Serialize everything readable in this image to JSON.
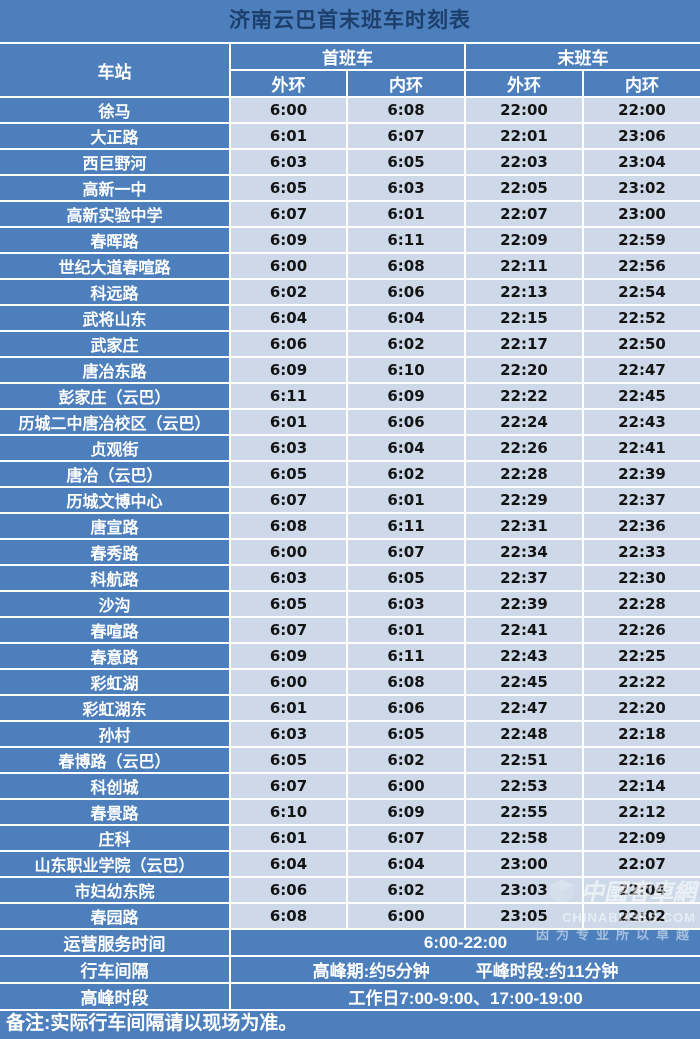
{
  "title": "济南云巴首末班车时刻表",
  "colors": {
    "background": "#4d7fbd",
    "grid_line": "#ffffff",
    "time_cell_bg": "#cdd9e9",
    "title_text": "#1d3f6b",
    "time_text": "#141414",
    "header_text": "#ffffff"
  },
  "table": {
    "col_station": "车站",
    "group_first": "首班车",
    "group_last": "末班车",
    "sub_outer_1": "外环",
    "sub_inner_1": "内环",
    "sub_outer_2": "外环",
    "sub_inner_2": "内环"
  },
  "stations": [
    [
      "徐马",
      "6:00",
      "6:08",
      "22:00",
      "22:00"
    ],
    [
      "大正路",
      "6:01",
      "6:07",
      "22:01",
      "23:06"
    ],
    [
      "西巨野河",
      "6:03",
      "6:05",
      "22:03",
      "23:04"
    ],
    [
      "高新一中",
      "6:05",
      "6:03",
      "22:05",
      "23:02"
    ],
    [
      "高新实验中学",
      "6:07",
      "6:01",
      "22:07",
      "23:00"
    ],
    [
      "春晖路",
      "6:09",
      "6:11",
      "22:09",
      "22:59"
    ],
    [
      "世纪大道春喧路",
      "6:00",
      "6:08",
      "22:11",
      "22:56"
    ],
    [
      "科远路",
      "6:02",
      "6:06",
      "22:13",
      "22:54"
    ],
    [
      "武将山东",
      "6:04",
      "6:04",
      "22:15",
      "22:52"
    ],
    [
      "武家庄",
      "6:06",
      "6:02",
      "22:17",
      "22:50"
    ],
    [
      "唐冶东路",
      "6:09",
      "6:10",
      "22:20",
      "22:47"
    ],
    [
      "彭家庄（云巴）",
      "6:11",
      "6:09",
      "22:22",
      "22:45"
    ],
    [
      "历城二中唐冶校区（云巴）",
      "6:01",
      "6:06",
      "22:24",
      "22:43"
    ],
    [
      "贞观街",
      "6:03",
      "6:04",
      "22:26",
      "22:41"
    ],
    [
      "唐冶（云巴）",
      "6:05",
      "6:02",
      "22:28",
      "22:39"
    ],
    [
      "历城文博中心",
      "6:07",
      "6:01",
      "22:29",
      "22:37"
    ],
    [
      "唐宣路",
      "6:08",
      "6:11",
      "22:31",
      "22:36"
    ],
    [
      "春秀路",
      "6:00",
      "6:07",
      "22:34",
      "22:33"
    ],
    [
      "科航路",
      "6:03",
      "6:05",
      "22:37",
      "22:30"
    ],
    [
      "沙沟",
      "6:05",
      "6:03",
      "22:39",
      "22:28"
    ],
    [
      "春喧路",
      "6:07",
      "6:01",
      "22:41",
      "22:26"
    ],
    [
      "春意路",
      "6:09",
      "6:11",
      "22:43",
      "22:25"
    ],
    [
      "彩虹湖",
      "6:00",
      "6:08",
      "22:45",
      "22:22"
    ],
    [
      "彩虹湖东",
      "6:01",
      "6:06",
      "22:47",
      "22:20"
    ],
    [
      "孙村",
      "6:03",
      "6:05",
      "22:48",
      "22:18"
    ],
    [
      "春博路（云巴）",
      "6:05",
      "6:02",
      "22:51",
      "22:16"
    ],
    [
      "科创城",
      "6:07",
      "6:00",
      "22:53",
      "22:14"
    ],
    [
      "春景路",
      "6:10",
      "6:09",
      "22:55",
      "22:12"
    ],
    [
      "庄科",
      "6:01",
      "6:07",
      "22:58",
      "22:09"
    ],
    [
      "山东职业学院（云巴）",
      "6:04",
      "6:04",
      "23:00",
      "22:07"
    ],
    [
      "市妇幼东院",
      "6:06",
      "6:02",
      "23:03",
      "22:04"
    ],
    [
      "春园路",
      "6:08",
      "6:00",
      "23:05",
      "22:02"
    ]
  ],
  "service_time": {
    "label": "运营服务时间",
    "value": "6:00-22:00"
  },
  "interval": {
    "label": "行车间隔",
    "peak": "高峰期:约5分钟",
    "offpeak": "平峰时段:约11分钟"
  },
  "peak_period": {
    "label": "高峰时段",
    "value": "工作日7:00-9:00、17:00-19:00"
  },
  "footnote": "备注:实际行车间隔请以现场为准。",
  "watermark": {
    "cn": "中國客車網",
    "site": "CHINABUSES.COM",
    "slogan": "因为专业所以卓越"
  }
}
